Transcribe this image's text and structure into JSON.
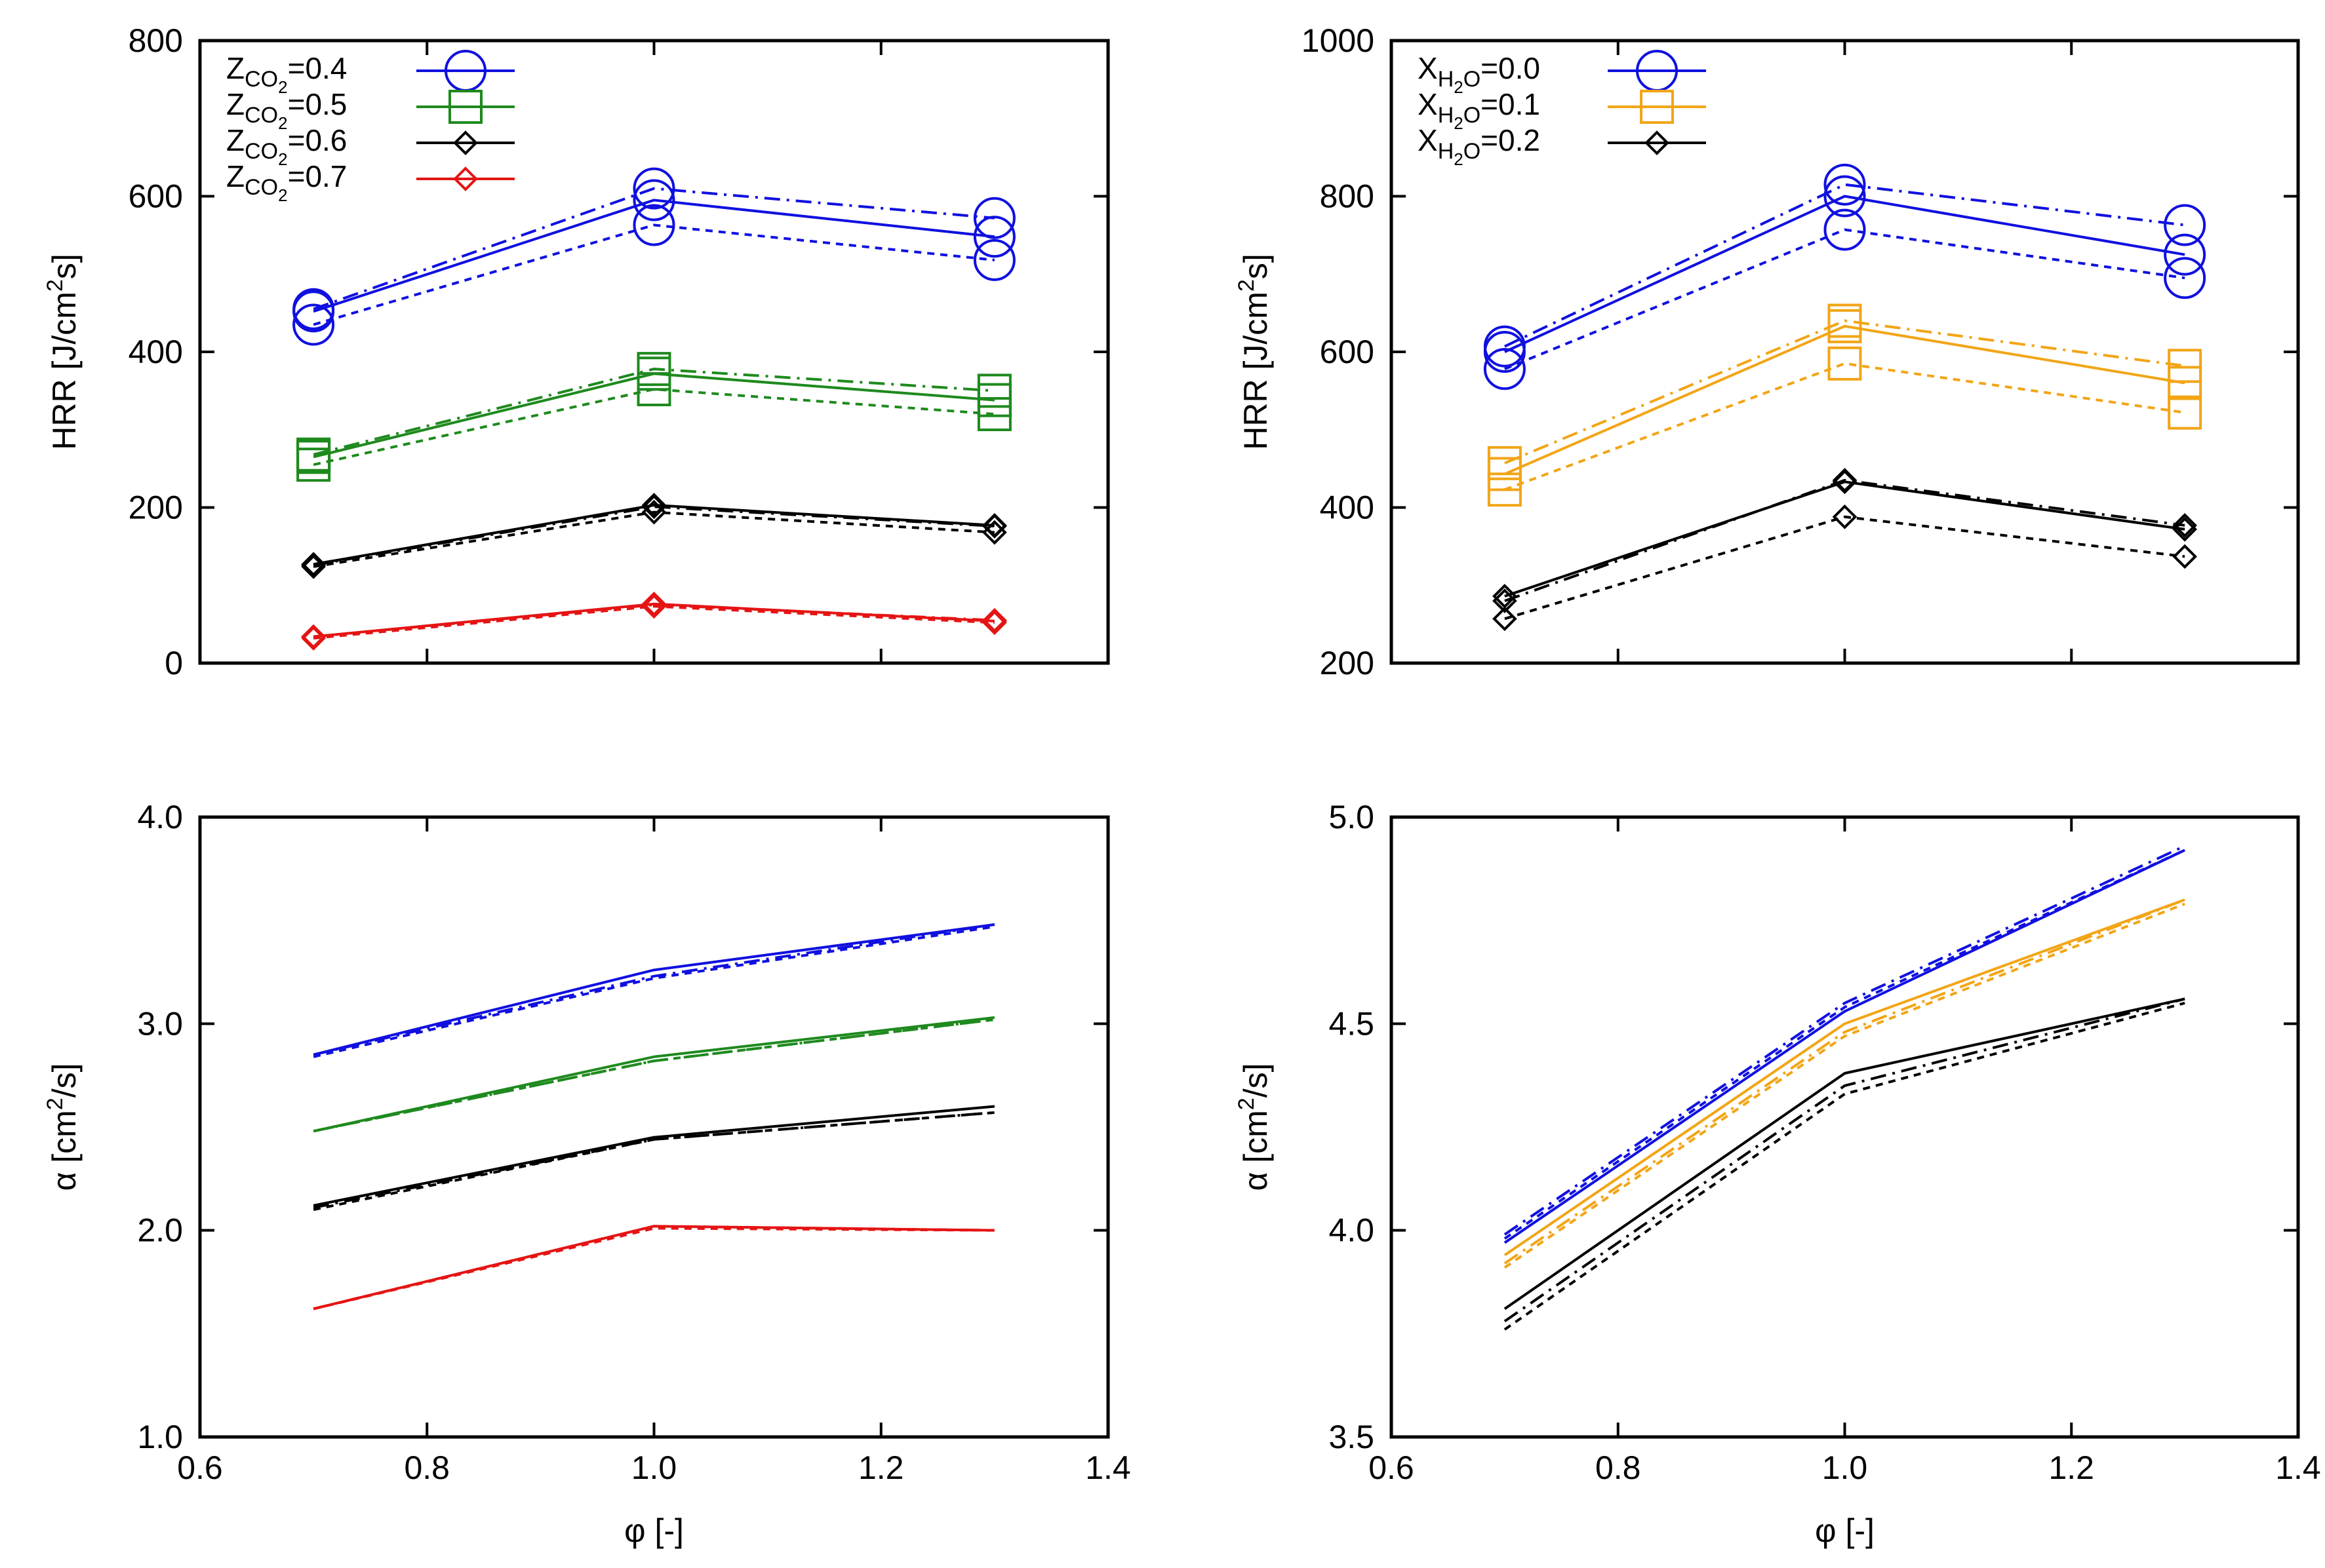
{
  "colors": {
    "blue": "#1010e0",
    "green": "#1e8a1e",
    "black": "#000000",
    "red": "#e51414",
    "orange": "#f2a516"
  },
  "chart_data": [
    {
      "type": "line",
      "panel": "top-left",
      "title": "",
      "xlabel": "",
      "ylabel": "HRR [J/cm2s]",
      "ylabel_parts": {
        "pre": "HRR [J/cm",
        "sup": "2",
        "post": "s]"
      },
      "xlim": [
        0.6,
        1.4
      ],
      "ylim": [
        0,
        800
      ],
      "xticks": [
        0.6,
        0.8,
        1.0,
        1.2,
        1.4
      ],
      "xtick_labels": [
        "",
        "",
        "",
        "",
        ""
      ],
      "yticks": [
        0,
        200,
        400,
        600,
        800
      ],
      "ytick_labels": [
        "0",
        "200",
        "400",
        "600",
        "800"
      ],
      "legend_position": "top-left",
      "x": [
        0.7,
        1.0,
        1.3
      ],
      "series": [
        {
          "name": "ZCO2=0.4",
          "legend": {
            "base": "Z",
            "sub": "CO",
            "subsub": "2",
            "rest": "=0.4"
          },
          "color": "blue",
          "marker": "circle",
          "marker_size": 30,
          "solid": [
            452,
            595,
            548
          ],
          "dashed": [
            435,
            563,
            518
          ],
          "dashdot": [
            455,
            610,
            572
          ]
        },
        {
          "name": "ZCO2=0.5",
          "legend": {
            "base": "Z",
            "sub": "CO",
            "subsub": "2",
            "rest": "=0.5"
          },
          "color": "green",
          "marker": "square",
          "marker_size": 24,
          "solid": [
            265,
            372,
            338
          ],
          "dashed": [
            255,
            352,
            320
          ],
          "dashdot": [
            268,
            378,
            350
          ]
        },
        {
          "name": "ZCO2=0.6",
          "legend": {
            "base": "Z",
            "sub": "CO",
            "subsub": "2",
            "rest": "=0.6"
          },
          "color": "black",
          "marker": "diamond",
          "marker_size": 16,
          "solid": [
            127,
            203,
            177
          ],
          "dashed": [
            124,
            194,
            168
          ],
          "dashdot": [
            126,
            201,
            176
          ]
        },
        {
          "name": "ZCO2=0.7",
          "legend": {
            "base": "Z",
            "sub": "CO",
            "subsub": "2",
            "rest": "=0.7"
          },
          "color": "red",
          "marker": "diamond",
          "marker_size": 16,
          "solid": [
            34,
            76,
            54
          ],
          "dashed": [
            32,
            73,
            52
          ],
          "dashdot": [
            34,
            75,
            55
          ]
        }
      ]
    },
    {
      "type": "line",
      "panel": "top-right",
      "title": "",
      "xlabel": "",
      "ylabel": "HRR [J/cm2s]",
      "ylabel_parts": {
        "pre": "HRR [J/cm",
        "sup": "2",
        "post": "s]"
      },
      "xlim": [
        0.6,
        1.4
      ],
      "ylim": [
        200,
        1000
      ],
      "xticks": [
        0.6,
        0.8,
        1.0,
        1.2,
        1.4
      ],
      "xtick_labels": [
        "",
        "",
        "",
        "",
        ""
      ],
      "yticks": [
        200,
        400,
        600,
        800,
        1000
      ],
      "ytick_labels": [
        "200",
        "400",
        "600",
        "800",
        "1000"
      ],
      "legend_position": "top-left",
      "x": [
        0.7,
        1.0,
        1.3
      ],
      "series": [
        {
          "name": "XH2O=0.0",
          "legend": {
            "base": "X",
            "sub": "H",
            "subsub": "2",
            "sub2": "O",
            "rest": "=0.0"
          },
          "color": "blue",
          "marker": "circle",
          "marker_size": 30,
          "solid": [
            600,
            800,
            725
          ],
          "dashed": [
            578,
            757,
            695
          ],
          "dashdot": [
            607,
            815,
            763
          ]
        },
        {
          "name": "XH2O=0.1",
          "legend": {
            "base": "X",
            "sub": "H",
            "subsub": "2",
            "sub2": "O",
            "rest": "=0.1"
          },
          "color": "orange",
          "marker": "square",
          "marker_size": 24,
          "solid": [
            443,
            633,
            560
          ],
          "dashed": [
            423,
            585,
            522
          ],
          "dashdot": [
            457,
            640,
            582
          ]
        },
        {
          "name": "XH2O=0.2",
          "legend": {
            "base": "X",
            "sub": "H",
            "subsub": "2",
            "sub2": "O",
            "rest": "=0.2"
          },
          "color": "black",
          "marker": "diamond",
          "marker_size": 16,
          "solid": [
            286,
            433,
            372
          ],
          "dashed": [
            257,
            388,
            337
          ],
          "dashdot": [
            280,
            435,
            377
          ]
        }
      ]
    },
    {
      "type": "line",
      "panel": "bottom-left",
      "title": "",
      "xlabel": "φ [-]",
      "ylabel": "α [cm2/s]",
      "ylabel_parts": {
        "pre": "α [cm",
        "sup": "2",
        "post": "/s]"
      },
      "xlim": [
        0.6,
        1.4
      ],
      "ylim": [
        1.0,
        4.0
      ],
      "xticks": [
        0.6,
        0.8,
        1.0,
        1.2,
        1.4
      ],
      "xtick_labels": [
        "0.6",
        "0.8",
        "1.0",
        "1.2",
        "1.4"
      ],
      "yticks": [
        1.0,
        2.0,
        3.0,
        4.0
      ],
      "ytick_labels": [
        "1.0",
        "2.0",
        "3.0",
        "4.0"
      ],
      "x": [
        0.7,
        1.0,
        1.3
      ],
      "series": [
        {
          "name": "ZCO2=0.4",
          "color": "blue",
          "solid": [
            2.85,
            3.26,
            3.48
          ],
          "dashed": [
            2.84,
            3.22,
            3.47
          ],
          "dashdot": [
            2.85,
            3.23,
            3.48
          ]
        },
        {
          "name": "ZCO2=0.5",
          "color": "green",
          "solid": [
            2.48,
            2.84,
            3.03
          ],
          "dashed": [
            2.48,
            2.82,
            3.02
          ],
          "dashdot": [
            2.48,
            2.82,
            3.02
          ]
        },
        {
          "name": "ZCO2=0.6",
          "color": "black",
          "solid": [
            2.12,
            2.45,
            2.6
          ],
          "dashed": [
            2.1,
            2.44,
            2.57
          ],
          "dashdot": [
            2.11,
            2.44,
            2.57
          ]
        },
        {
          "name": "ZCO2=0.7",
          "color": "red",
          "solid": [
            1.62,
            2.02,
            2.0
          ],
          "dashed": [
            1.62,
            2.01,
            2.0
          ],
          "dashdot": [
            1.62,
            2.02,
            2.0
          ]
        }
      ]
    },
    {
      "type": "line",
      "panel": "bottom-right",
      "title": "",
      "xlabel": "φ [-]",
      "ylabel": "α [cm2/s]",
      "ylabel_parts": {
        "pre": "α [cm",
        "sup": "2",
        "post": "/s]"
      },
      "xlim": [
        0.6,
        1.4
      ],
      "ylim": [
        3.5,
        5.0
      ],
      "xticks": [
        0.6,
        0.8,
        1.0,
        1.2,
        1.4
      ],
      "xtick_labels": [
        "0.6",
        "0.8",
        "1.0",
        "1.2",
        "1.4"
      ],
      "yticks": [
        3.5,
        4.0,
        4.5,
        5.0
      ],
      "ytick_labels": [
        "3.5",
        "4.0",
        "4.5",
        "5.0"
      ],
      "x": [
        0.7,
        1.0,
        1.3
      ],
      "series": [
        {
          "name": "XH2O=0.0",
          "color": "blue",
          "solid": [
            3.97,
            4.53,
            4.92
          ],
          "dashed": [
            3.98,
            4.54,
            4.92
          ],
          "dashdot": [
            3.99,
            4.55,
            4.93
          ]
        },
        {
          "name": "XH2O=0.1",
          "color": "orange",
          "solid": [
            3.94,
            4.5,
            4.8
          ],
          "dashed": [
            3.91,
            4.47,
            4.79
          ],
          "dashdot": [
            3.92,
            4.48,
            4.8
          ]
        },
        {
          "name": "XH2O=0.2",
          "color": "black",
          "solid": [
            3.81,
            4.38,
            4.56
          ],
          "dashed": [
            3.76,
            4.33,
            4.55
          ],
          "dashdot": [
            3.78,
            4.35,
            4.56
          ]
        }
      ]
    }
  ]
}
